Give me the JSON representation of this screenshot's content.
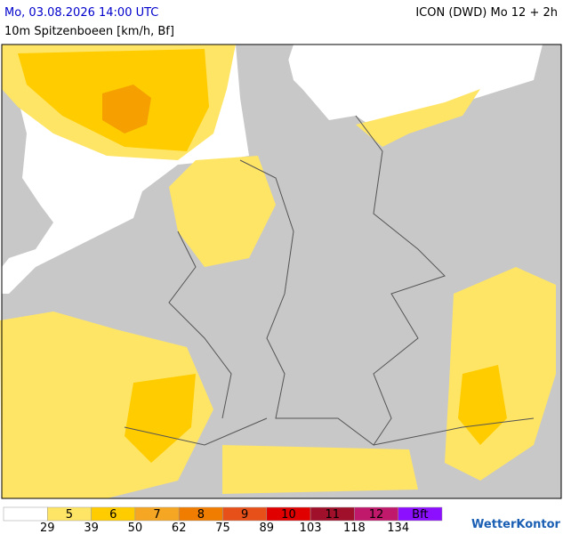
{
  "header": {
    "title": "Mo, 03.08.2026 14:00 UTC",
    "model": "ICON (DWD) Mo 12 + 2h",
    "subtitle": "10m Spitzenboeen [km/h, Bf]"
  },
  "legend": {
    "classes": [
      {
        "color": "#ffffff"
      },
      {
        "label": "5",
        "color": "#ffe566"
      },
      {
        "label": "6",
        "color": "#ffcc00"
      },
      {
        "label": "7",
        "color": "#f5a623"
      },
      {
        "label": "8",
        "color": "#f07c00"
      },
      {
        "label": "9",
        "color": "#e8501a"
      },
      {
        "label": "10",
        "color": "#e00000"
      },
      {
        "label": "11",
        "color": "#a0102a"
      },
      {
        "label": "12",
        "color": "#c0186a"
      },
      {
        "label": "Bft",
        "color": "#8c10ff"
      }
    ],
    "thresholds": [
      29,
      39,
      50,
      62,
      75,
      89,
      103,
      118,
      134
    ]
  },
  "logo": "WetterKontor"
}
